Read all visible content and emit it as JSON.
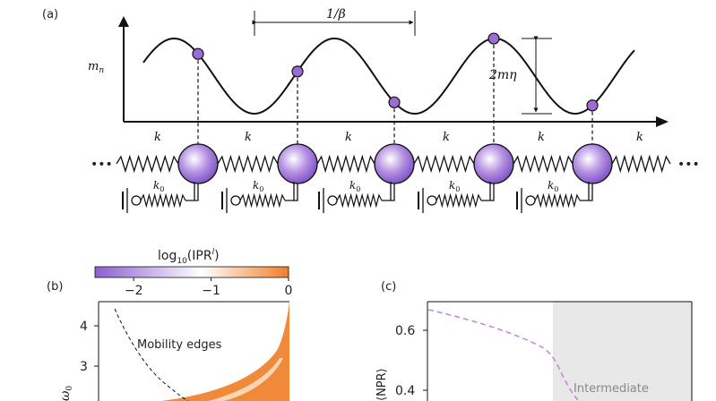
{
  "panel_a": {
    "label": "(a)",
    "ylabel": "m",
    "ylabel_sub": "n",
    "period_label": "1/β",
    "amplitude_label": "2mη",
    "spring_label": "k",
    "ground_spring_label": "k",
    "ground_spring_sub": "0",
    "ellipsis": "•••",
    "mass_count": 5,
    "mass_color": "#9b6bd6",
    "mass_highlight": "#ffffff"
  },
  "colorbar": {
    "title_prefix": "log",
    "title_sub": "10",
    "title_arg": "(IPR",
    "title_sup": "l",
    "title_close": ")",
    "ticks": [
      "−2",
      "−1",
      "0"
    ],
    "tick_values": [
      -2,
      -1,
      0
    ],
    "range": [
      -2.5,
      0
    ],
    "color_low": "#8c5fd0",
    "color_mid": "#ffffff",
    "color_high": "#f07f2a"
  },
  "panel_b": {
    "label": "(b)",
    "yticks": [
      "4",
      "3"
    ],
    "ylabel": "ω",
    "ylabel_sub": "0",
    "annotation": "Mobility edges",
    "fill_color": "#f08a3a"
  },
  "panel_c": {
    "label": "(c)",
    "yticks": [
      "0.6",
      "0.4"
    ],
    "ylabel": "⟨NPR⟩",
    "region_label": "Intermediate",
    "region_color": "#e8e8e8",
    "curve_color": "#c48ad8"
  }
}
